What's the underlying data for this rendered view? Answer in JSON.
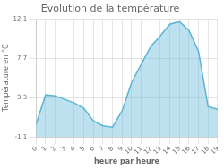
{
  "chart_data": {
    "type": "area",
    "title": "Evolution de la température",
    "x_label": "heure par heure",
    "y_label": "Température en °C",
    "x": [
      0,
      1,
      2,
      3,
      4,
      5,
      6,
      7,
      8,
      9,
      10,
      11,
      12,
      13,
      14,
      15,
      16,
      17,
      18,
      19
    ],
    "values": [
      0.3,
      3.6,
      3.5,
      3.1,
      2.7,
      2.1,
      0.7,
      0.15,
      0.0,
      1.8,
      5.0,
      7.0,
      9.0,
      10.2,
      11.5,
      11.8,
      10.8,
      8.5,
      2.3,
      2.0
    ],
    "color": "#5ab4d4",
    "xlim": [
      0,
      19
    ],
    "xticks": [
      0,
      1,
      2,
      3,
      4,
      5,
      6,
      7,
      8,
      9,
      10,
      11,
      12,
      13,
      14,
      15,
      16,
      17,
      18,
      19
    ],
    "ylim": [
      -1.1,
      12.1
    ],
    "yticks": [
      -1.1,
      3.3,
      7.7,
      12.1
    ],
    "grid": true
  }
}
